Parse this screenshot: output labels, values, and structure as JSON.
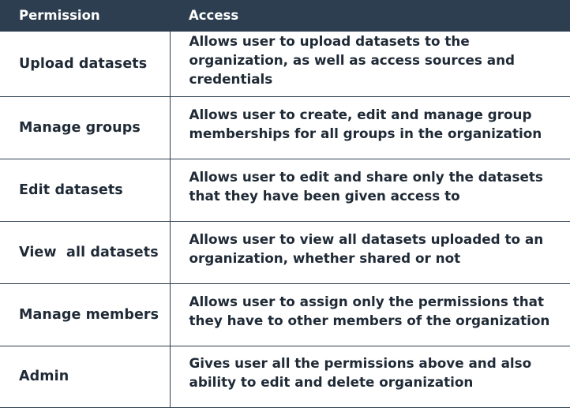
{
  "table": {
    "headers": {
      "permission": "Permission",
      "access": "Access"
    },
    "rows": [
      {
        "permission": "Upload datasets",
        "access": "Allows user to upload datasets to the organization, as well as access sources and credentials"
      },
      {
        "permission": "Manage groups",
        "access": "Allows user to create, edit and manage group memberships for all groups in the organization"
      },
      {
        "permission": "Edit datasets",
        "access": "Allows user to edit and share only the datasets that they have been given access to"
      },
      {
        "permission": "View  all datasets",
        "access": "Allows user to view all datasets uploaded to an organization, whether shared or not"
      },
      {
        "permission": "Manage members",
        "access": "Allows user to assign only the permissions that they have to other members of the organization"
      },
      {
        "permission": "Admin",
        "access": "Gives user all the permissions above and also ability to edit and delete organization"
      }
    ]
  },
  "colors": {
    "header_bg": "#2d3e50",
    "header_text": "#ffffff",
    "body_text": "#1f2a36",
    "border": "#2d3e50"
  }
}
